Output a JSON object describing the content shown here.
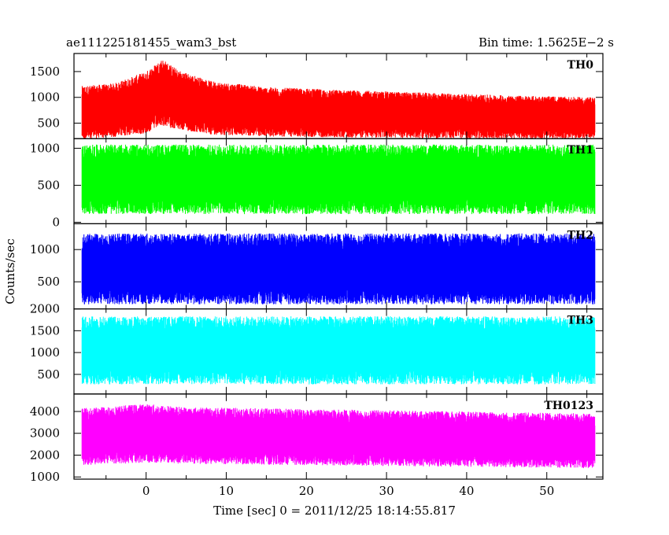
{
  "chart_data": {
    "type": "line",
    "title": "ae111225181455_wam3_bst",
    "subtitle": "Bin time: 1.5625E−2 s",
    "xlabel": "Time [sec] 0 = 2011/12/25 18:14:55.817",
    "ylabel": "Counts/sec",
    "xlim": [
      -9,
      57
    ],
    "xticks": [
      0,
      10,
      20,
      30,
      40,
      50
    ],
    "grid": false,
    "panels": [
      {
        "name": "TH0",
        "color": "#ff0000",
        "ylim": [
          200,
          1850
        ],
        "yticks": [
          500,
          1000,
          1500
        ],
        "x": [
          -8,
          -4,
          0,
          2,
          4,
          8,
          15,
          25,
          35,
          45,
          56
        ],
        "values": [
          700,
          750,
          900,
          1100,
          950,
          800,
          720,
          680,
          650,
          620,
          600
        ],
        "spread": [
          520,
          520,
          600,
          650,
          580,
          520,
          480,
          460,
          440,
          420,
          400
        ]
      },
      {
        "name": "TH1",
        "color": "#00ff00",
        "ylim": [
          -20,
          1130
        ],
        "yticks": [
          0,
          500,
          1000
        ],
        "x": [
          -8,
          56
        ],
        "values": [
          580,
          580
        ],
        "spread": [
          470,
          470
        ]
      },
      {
        "name": "TH2",
        "color": "#0000ff",
        "ylim": [
          80,
          1400
        ],
        "yticks": [
          500,
          1000
        ],
        "x": [
          -8,
          56
        ],
        "values": [
          700,
          700
        ],
        "spread": [
          550,
          550
        ]
      },
      {
        "name": "TH3",
        "color": "#00ffff",
        "ylim": [
          50,
          2000
        ],
        "yticks": [
          500,
          1000,
          1500,
          2000
        ],
        "x": [
          -8,
          56
        ],
        "values": [
          1050,
          1050
        ],
        "spread": [
          780,
          780
        ]
      },
      {
        "name": "TH0123",
        "color": "#ff00ff",
        "ylim": [
          900,
          4800
        ],
        "yticks": [
          1000,
          2000,
          3000,
          4000
        ],
        "x": [
          -8,
          0,
          5,
          56
        ],
        "values": [
          2850,
          3000,
          2900,
          2650
        ],
        "spread": [
          1300,
          1350,
          1300,
          1250
        ]
      }
    ]
  }
}
